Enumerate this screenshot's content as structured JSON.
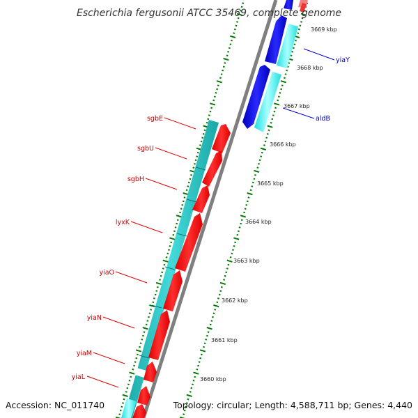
{
  "title": "Escherichia fergusonii ATCC 35469, complete genome",
  "footer": {
    "accession": "Accession: NC_011740",
    "topology": "Topology: circular; Length: 4,588,711 bp; Genes: 4,440"
  },
  "colors": {
    "forward_gene": "#ff0000",
    "forward_cds": "#00cccc",
    "reverse_gene": "#0000e0",
    "reverse_cds": "#00eeee",
    "backbone": "#808080",
    "tick": "#007700",
    "label_red": "#cc0000",
    "label_blue": "#0000aa"
  },
  "ticks": [
    "3660 kbp",
    "3661 kbp",
    "3662 kbp",
    "3663 kbp",
    "3664 kbp",
    "3665 kbp",
    "3666 kbp",
    "3667 kbp",
    "3668 kbp",
    "3669 kbp"
  ],
  "genes": [
    {
      "label": "sgbE",
      "strand": "forward"
    },
    {
      "label": "sgbU",
      "strand": "forward"
    },
    {
      "label": "sgbH",
      "strand": "forward"
    },
    {
      "label": "lyxK",
      "strand": "forward"
    },
    {
      "label": "yiaO",
      "strand": "forward"
    },
    {
      "label": "yiaN",
      "strand": "forward"
    },
    {
      "label": "yiaM",
      "strand": "forward"
    },
    {
      "label": "yiaL",
      "strand": "forward"
    },
    {
      "label": "aldB",
      "strand": "reverse"
    },
    {
      "label": "yiaY",
      "strand": "reverse"
    }
  ]
}
